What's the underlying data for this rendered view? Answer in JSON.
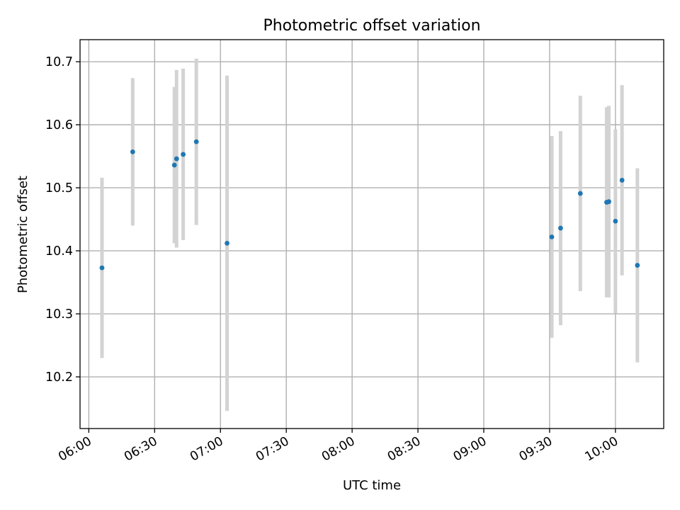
{
  "chart_data": {
    "type": "scatter",
    "title": "Photometric offset variation",
    "xlabel": "UTC time",
    "ylabel": "Photometric offset",
    "x_ticks": [
      "06:00",
      "06:30",
      "07:00",
      "07:30",
      "08:00",
      "08:30",
      "09:00",
      "09:30",
      "10:00"
    ],
    "y_ticks": [
      "10.2",
      "10.3",
      "10.4",
      "10.5",
      "10.6",
      "10.7"
    ],
    "xlim": [
      "05:56",
      "10:22"
    ],
    "ylim": [
      10.118,
      10.735
    ],
    "grid": true,
    "error_bar_color": "#d3d3d3",
    "point_color": "#1f77b4",
    "points": [
      {
        "x": "06:06",
        "y": 10.373,
        "err": 0.143
      },
      {
        "x": "06:20",
        "y": 10.557,
        "err": 0.117
      },
      {
        "x": "06:39",
        "y": 10.536,
        "err": 0.124
      },
      {
        "x": "06:40",
        "y": 10.546,
        "err": 0.141
      },
      {
        "x": "06:43",
        "y": 10.553,
        "err": 0.136
      },
      {
        "x": "06:49",
        "y": 10.573,
        "err": 0.132
      },
      {
        "x": "07:03",
        "y": 10.412,
        "err": 0.266
      },
      {
        "x": "09:31",
        "y": 10.422,
        "err": 0.16
      },
      {
        "x": "09:35",
        "y": 10.436,
        "err": 0.154
      },
      {
        "x": "09:44",
        "y": 10.491,
        "err": 0.155
      },
      {
        "x": "09:56",
        "y": 10.477,
        "err": 0.151
      },
      {
        "x": "09:57",
        "y": 10.478,
        "err": 0.152
      },
      {
        "x": "10:00",
        "y": 10.447,
        "err": 0.146
      },
      {
        "x": "10:03",
        "y": 10.512,
        "err": 0.151
      },
      {
        "x": "10:10",
        "y": 10.377,
        "err": 0.154
      }
    ]
  }
}
